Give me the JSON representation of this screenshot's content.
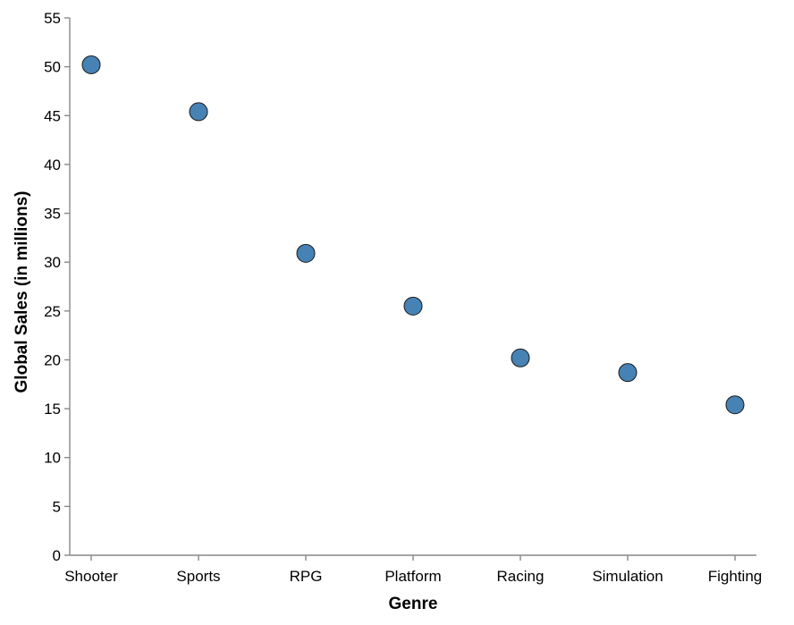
{
  "chart_data": {
    "type": "scatter",
    "categories": [
      "Shooter",
      "Sports",
      "RPG",
      "Platform",
      "Racing",
      "Simulation",
      "Fighting"
    ],
    "values": [
      50.2,
      45.4,
      30.9,
      25.5,
      20.2,
      18.7,
      15.4
    ],
    "xlabel": "Genre",
    "ylabel": "Global Sales (in millions)",
    "ylim": [
      0,
      55
    ],
    "yticks": [
      0,
      5,
      10,
      15,
      20,
      25,
      30,
      35,
      40,
      45,
      50,
      55
    ],
    "grid": false,
    "point_color": "#4682b4",
    "point_stroke": "#1a1a1a"
  }
}
